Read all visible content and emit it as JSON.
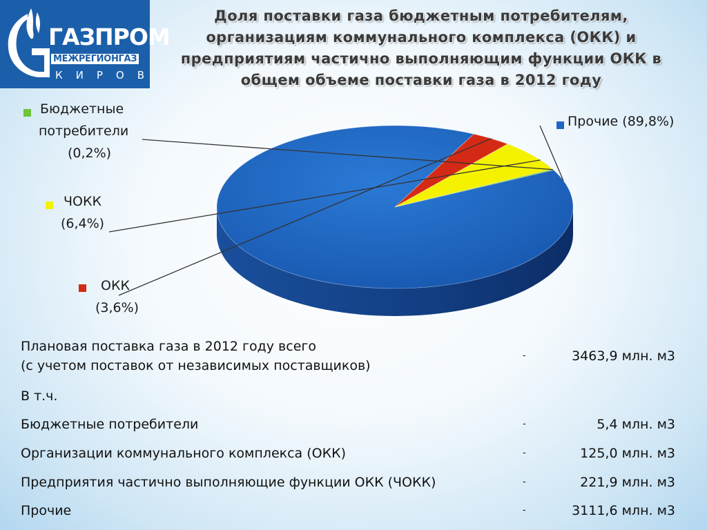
{
  "logo": {
    "brand": "ГАЗПРОМ",
    "sub": "МЕЖРЕГИОНГАЗ",
    "city": "КИРОВ"
  },
  "title": {
    "line1": "Доля поставки газа бюджетным потребителям,",
    "line2": "организациям коммунального комплекса (ОКК) и",
    "line3": "предприятиям частично выполняющим функции ОКК в",
    "line4": "общем объеме поставки газа в 2012 году"
  },
  "chart_data": {
    "type": "pie",
    "title": "Доля поставки газа бюджетным потребителям, организациям коммунального комплекса (ОКК) и предприятиям частично выполняющим функции ОКК в общем объеме поставки газа в 2012 году",
    "categories": [
      "Прочие",
      "ОКК",
      "ЧОКК",
      "Бюджетные потребители"
    ],
    "values": [
      89.8,
      3.6,
      6.4,
      0.2
    ],
    "colors": [
      "#1f66c6",
      "#d42a15",
      "#f5f200",
      "#6ec43a"
    ],
    "legend_labels": [
      [
        "Прочие (89,8%)"
      ],
      [
        "ОКК",
        "(3,6%)"
      ],
      [
        "ЧОКК",
        "(6,4%)"
      ],
      [
        "Бюджетные",
        "потребители",
        "(0,2%)"
      ]
    ]
  },
  "table": {
    "rows": [
      {
        "label": [
          "Плановая поставка газа в 2012 году всего",
          "(с учетом поставок от независимых поставщиков)"
        ],
        "dash": "-",
        "value": "3463,9 млн. м3"
      },
      {
        "label": [
          "В т.ч."
        ],
        "dash": "",
        "value": ""
      },
      {
        "label": [
          "Бюджетные потребители"
        ],
        "dash": "-",
        "value": "5,4 млн. м3"
      },
      {
        "label": [
          "Организации коммунального комплекса (ОКК)"
        ],
        "dash": "-",
        "value": "125,0 млн. м3"
      },
      {
        "label": [
          "Предприятия частично выполняющие функции ОКК (ЧОКК)"
        ],
        "dash": "-",
        "value": "221,9 млн. м3"
      },
      {
        "label": [
          "Прочие"
        ],
        "dash": "-",
        "value": "3111,6 млн. м3"
      }
    ]
  }
}
